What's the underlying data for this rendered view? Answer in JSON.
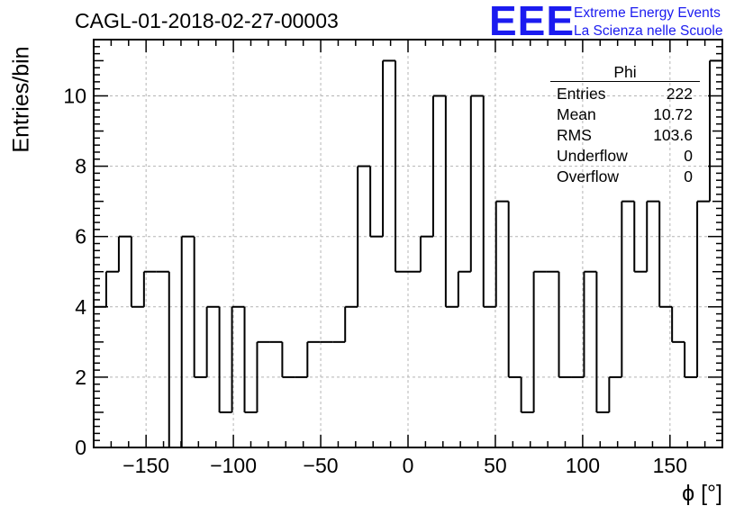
{
  "title": "CAGL-01-2018-02-27-00003",
  "logo": {
    "mark": "EEE",
    "line1": "Extreme Energy Events",
    "line2": "La Scienza nelle Scuole"
  },
  "stats_box": {
    "title": "Phi",
    "rows": [
      {
        "label": "Entries",
        "value": "222"
      },
      {
        "label": "Mean",
        "value": "10.72"
      },
      {
        "label": "RMS",
        "value": "103.6"
      },
      {
        "label": "Underflow",
        "value": "0"
      },
      {
        "label": "Overflow",
        "value": "0"
      }
    ]
  },
  "chart_data": {
    "type": "bar",
    "style": "step-histogram",
    "title": "CAGL-01-2018-02-27-00003",
    "xlabel": "ϕ [°]",
    "ylabel": "Entries/bin",
    "xlim": [
      -180,
      180
    ],
    "ylim": [
      0,
      11.6
    ],
    "grid": true,
    "x_ticks": [
      -150,
      -100,
      -50,
      0,
      50,
      100,
      150
    ],
    "x_tick_labels": [
      "−150",
      "−100",
      "−50",
      "0",
      "50",
      "100",
      "150"
    ],
    "y_ticks": [
      0,
      2,
      4,
      6,
      8,
      10
    ],
    "y_tick_labels": [
      "0",
      "2",
      "4",
      "6",
      "8",
      "10"
    ],
    "bin_edges_start": -180,
    "bin_width": 7.2,
    "values": [
      4,
      5,
      6,
      4,
      5,
      5,
      0,
      6,
      2,
      4,
      1,
      4,
      1,
      3,
      3,
      2,
      2,
      3,
      3,
      3,
      4,
      8,
      6,
      11,
      5,
      5,
      6,
      10,
      4,
      5,
      10,
      4,
      7,
      2,
      1,
      5,
      5,
      2,
      2,
      5,
      1,
      2,
      7,
      5,
      7,
      4,
      3,
      2,
      7,
      11
    ]
  }
}
